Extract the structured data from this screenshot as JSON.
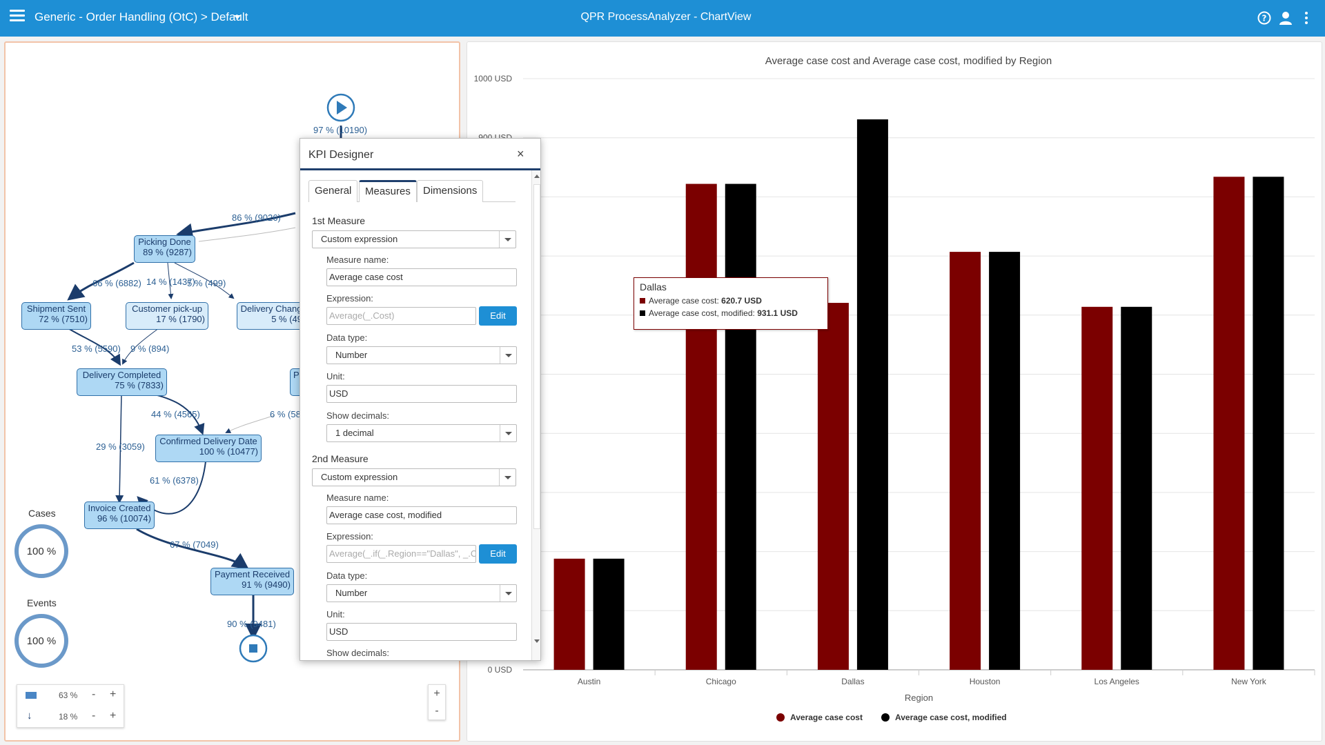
{
  "topbar": {
    "breadcrumb": "Generic - Order Handling (OtC) > Default",
    "app_title": "QPR ProcessAnalyzer - ChartView"
  },
  "process_map": {
    "start_label": "97 % (10190)",
    "nodes": {
      "picking_done": {
        "name": "Picking Done",
        "pct": "89 % (9287)"
      },
      "shipment_sent": {
        "name": "Shipment Sent",
        "pct": "72 % (7510)"
      },
      "customer_pickup": {
        "name": "Customer pick-up",
        "pct": "17 % (1790)"
      },
      "delivery_change": {
        "name": "Delivery Chang",
        "pct": "5 % (49"
      },
      "delivery_completed": {
        "name": "Delivery Completed",
        "pct": "75 % (7833)"
      },
      "confirmed_delivery": {
        "name": "Confirmed Delivery Date",
        "pct": "100 % (10477)"
      },
      "invoice_created": {
        "name": "Invoice Created",
        "pct": "96 % (10074)"
      },
      "payment_received": {
        "name": "Payment Received",
        "pct": "91 % (9490)"
      },
      "partial_node": {
        "name": "Pu"
      }
    },
    "edges": {
      "to_picking": "86 % (9026)",
      "picking_to_shipment": "66 % (6882)",
      "picking_to_pickup": "14 % (1437)",
      "picking_to_change": "5 % (499)",
      "shipment_to_completed": "53 % (5590)",
      "pickup_to_completed": "9 % (894)",
      "completed_to_confirmed": "44 % (4565)",
      "to_confirmed_right": "6 % (58",
      "completed_to_invoice": "29 % (3059)",
      "confirmed_to_invoice": "61 % (6378)",
      "invoice_to_payment": "67 % (7049)",
      "payment_to_end": "90 % (9481)"
    },
    "cases_title": "Cases",
    "cases_value": "100 %",
    "events_title": "Events",
    "events_value": "100 %",
    "controls": {
      "row1_value": "63 %",
      "row2_value": "18 %",
      "minus": "-",
      "plus": "+"
    },
    "zoom": {
      "plus": "+",
      "minus": "-"
    }
  },
  "chart_data": {
    "type": "bar",
    "title": "Average case cost and Average case cost, modified by Region",
    "xlabel": "Region",
    "ylabel": "",
    "ylim": [
      0,
      1000
    ],
    "y_ticks_visible": [
      "1000 USD",
      "900 USD",
      "0 USD"
    ],
    "categories": [
      "Austin",
      "Chicago",
      "Dallas",
      "Houston",
      "Los Angeles",
      "New York"
    ],
    "series": [
      {
        "name": "Average case cost",
        "color": "#7b0000",
        "values": [
          188,
          822,
          620.7,
          707,
          614,
          834
        ]
      },
      {
        "name": "Average case cost, modified",
        "color": "#000000",
        "values": [
          188,
          822,
          931.1,
          707,
          614,
          834
        ]
      }
    ],
    "legend": "bottom",
    "grid": true
  },
  "tooltip": {
    "title": "Dallas",
    "row1_label": "Average case cost: ",
    "row1_value": "620.7 USD",
    "row2_label": "Average case cost, modified: ",
    "row2_value": "931.1 USD"
  },
  "kpi_designer": {
    "title": "KPI Designer",
    "close": "×",
    "tabs": [
      "General",
      "Measures",
      "Dimensions"
    ],
    "measure1": {
      "section": "1st Measure",
      "type": "Custom expression",
      "name_label": "Measure name:",
      "name_value": "Average case cost",
      "expr_label": "Expression:",
      "expr_value": "Average(_.Cost)",
      "edit": "Edit",
      "dtype_label": "Data type:",
      "dtype_value": "Number",
      "unit_label": "Unit:",
      "unit_value": "USD",
      "dec_label": "Show decimals:",
      "dec_value": "1 decimal"
    },
    "measure2": {
      "section": "2nd Measure",
      "type": "Custom expression",
      "name_label": "Measure name:",
      "name_value": "Average case cost, modified",
      "expr_label": "Expression:",
      "expr_value": "Average(_.if(_.Region==\"Dallas\", _.C",
      "edit": "Edit",
      "dtype_label": "Data type:",
      "dtype_value": "Number",
      "unit_label": "Unit:",
      "unit_value": "USD",
      "dec_label": "Show decimals:"
    }
  },
  "icons": {
    "menu": "hamburger-icon",
    "help": "help-icon",
    "user": "user-icon",
    "more": "more-vertical-icon",
    "start": "play-icon",
    "end": "stop-icon"
  }
}
